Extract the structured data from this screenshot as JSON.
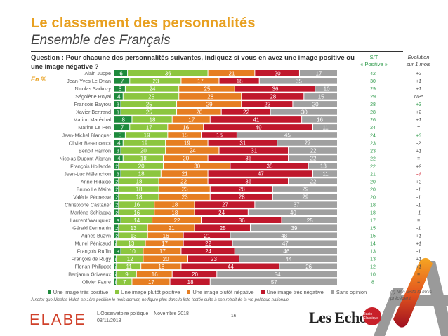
{
  "header": {
    "title": "Le classement des personnalités",
    "subtitle": "Ensemble des Français",
    "question": "Question : Pour chacune des personnalités suivantes, indiquez si vous en avez une image positive ou une image négative ?",
    "unit": "En %",
    "col_positive_line1": "S/T",
    "col_positive_line2": "« Positive »",
    "col_evolution_line1": "Evolution",
    "col_evolution_line2": "sur 1 mois"
  },
  "colors": {
    "tres_positive": "#1E8A3C",
    "plutot_positive": "#8CC63F",
    "plutot_negative": "#E67E22",
    "tres_negative": "#C0182C",
    "sans_opinion": "#A0A0A0",
    "accent_title": "#E8A020",
    "positive_text": "#2E9A4A",
    "negative_evolution": "#D02030"
  },
  "chart_data": {
    "type": "bar",
    "orientation": "horizontal-stacked-100",
    "title": "Le classement des personnalités",
    "subtitle": "Ensemble des Français",
    "xlim": [
      0,
      100
    ],
    "categories": [
      "Alain Juppé",
      "Jean-Yves Le Drian",
      "Nicolas Sarkozy",
      "Ségolène Royal",
      "François Bayrou",
      "Xavier Bertrand",
      "Marion Maréchal",
      "Marine Le Pen",
      "Jean-Michel Blanquer",
      "Olivier Besancenot",
      "Benoît Hamon",
      "Nicolas Dupont-Aignan",
      "François Hollande",
      "Jean-Luc Mélenchon",
      "Anne Hidalgo",
      "Bruno Le Maire",
      "Valérie Pécresse",
      "Christophe Castaner",
      "Marlène Schiappa",
      "Laurent Wauquiez",
      "Gérald Darmanin",
      "Agnès Buzyn",
      "Muriel Pénicaud",
      "François Ruffin",
      "François de Rugy",
      "Florian Philippot",
      "Benjamin Griveaux",
      "Olivier Faure"
    ],
    "series": [
      {
        "name": "Une image très positive",
        "labels": [
          "6",
          "7",
          "5",
          "4",
          "3",
          "3",
          "8",
          "7",
          "5",
          "4",
          "3",
          "4",
          "2",
          "3",
          "2",
          "2",
          "2",
          "2",
          "2",
          "3",
          "2",
          "2",
          "1",
          "3",
          "1",
          "1",
          "1",
          "1"
        ],
        "values": [
          6,
          7,
          5,
          4,
          3,
          3,
          8,
          7,
          5,
          4,
          3,
          4,
          2,
          3,
          2,
          2,
          2,
          2,
          2,
          3,
          2,
          2,
          1,
          3,
          1,
          1,
          1,
          1
        ]
      },
      {
        "name": "Une image plutôt positive",
        "values": [
          36,
          23,
          24,
          25,
          25,
          25,
          18,
          17,
          19,
          19,
          20,
          18,
          20,
          18,
          18,
          18,
          18,
          16,
          16,
          14,
          13,
          13,
          13,
          10,
          12,
          11,
          9,
          7
        ]
      },
      {
        "name": "Une image plutôt négative",
        "values": [
          21,
          17,
          25,
          28,
          29,
          20,
          17,
          16,
          15,
          19,
          24,
          20,
          30,
          21,
          22,
          23,
          23,
          18,
          18,
          22,
          21,
          16,
          17,
          17,
          20,
          18,
          16,
          17
        ]
      },
      {
        "name": "Une image très négative",
        "values": [
          20,
          18,
          36,
          28,
          23,
          22,
          41,
          49,
          16,
          31,
          31,
          36,
          35,
          47,
          36,
          28,
          28,
          27,
          24,
          36,
          25,
          21,
          22,
          24,
          23,
          44,
          20,
          18
        ]
      },
      {
        "name": "Sans opinion",
        "values": [
          17,
          35,
          10,
          15,
          20,
          30,
          16,
          11,
          45,
          27,
          22,
          22,
          13,
          11,
          22,
          29,
          29,
          37,
          40,
          25,
          39,
          48,
          47,
          46,
          44,
          26,
          54,
          57
        ]
      }
    ],
    "st_positive": [
      "42",
      "30",
      "29",
      "29",
      "28",
      "28",
      "26",
      "24",
      "24",
      "23",
      "23",
      "22",
      "22",
      "21",
      "20",
      "20",
      "20",
      "18",
      "18",
      "17",
      "15",
      "15",
      "14",
      "13",
      "13",
      "12",
      "10",
      "8"
    ],
    "evolution": [
      "+2",
      "+1",
      "+1",
      "NP*",
      "+3",
      "+2",
      "+1",
      "=",
      "+3",
      "-2",
      "+1",
      "=",
      "+2",
      "-4",
      "+2",
      "-1",
      "-1",
      "-1",
      "-1",
      "=",
      "-1",
      "+1",
      "+1",
      "-1",
      "+1",
      "+1",
      "=",
      "="
    ],
    "legend_position": "bottom"
  },
  "legend": [
    "Une image très positive",
    "Une image plutôt positive",
    "Une image plutôt négative",
    "Une image très négative",
    "Sans opinion"
  ],
  "footer": {
    "note": "A noter que Nicolas Hulot, en 1ère position le mois dernier, ne figure plus dans la liste testée suite à son retrait de la vie politique nationale.",
    "footnote": "(*) Non testé le mois précédent",
    "logo_elabe": "ELABE",
    "source_line1": "L'Observatoire politique – Novembre 2018",
    "source_line2": "08/11/2018",
    "page_number": "16",
    "logo_lesechos": "Les Echos",
    "badge_text": "Radio Classique"
  }
}
